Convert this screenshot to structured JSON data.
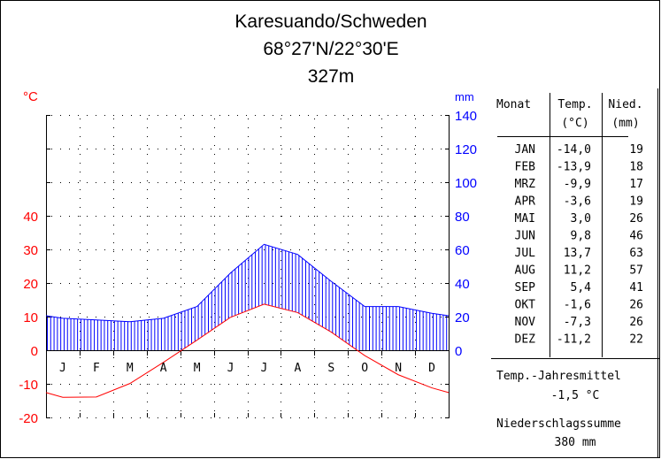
{
  "title": {
    "station": "Karesuando/Schweden",
    "coords": "68°27'N/22°30'E",
    "elevation": "327m"
  },
  "colors": {
    "temp": "#ff0000",
    "precip": "#0000ff",
    "axis": "#000000"
  },
  "chart_data": {
    "type": "line",
    "title": "Karesuando/Schweden",
    "categories": [
      "J",
      "F",
      "M",
      "A",
      "M",
      "J",
      "J",
      "A",
      "S",
      "O",
      "N",
      "D"
    ],
    "temp_axis": {
      "label": "°C",
      "ticks": [
        "-20",
        "-10",
        "0",
        "10",
        "20",
        "30",
        "40"
      ],
      "range": [
        -20,
        70
      ]
    },
    "precip_axis": {
      "label": "mm",
      "ticks": [
        "0",
        "20",
        "40",
        "60",
        "80",
        "100",
        "120",
        "140"
      ],
      "range": [
        -40,
        140
      ]
    },
    "grid": true,
    "series": [
      {
        "name": "Temp. (°C)",
        "values": [
          -14.0,
          -13.9,
          -9.9,
          -3.6,
          3.0,
          9.8,
          13.7,
          11.2,
          5.4,
          -1.6,
          -7.3,
          -11.2
        ]
      },
      {
        "name": "Nied. (mm)",
        "values": [
          19,
          18,
          17,
          19,
          26,
          46,
          63,
          57,
          41,
          26,
          26,
          22
        ]
      }
    ]
  },
  "table": {
    "headers": {
      "month": "Monat",
      "temp1": "Temp.",
      "temp2": "(°C)",
      "precip1": "Nied.",
      "precip2": "(mm)"
    },
    "rows": [
      {
        "m": "JAN",
        "t": "-14,0",
        "p": "19"
      },
      {
        "m": "FEB",
        "t": "-13,9",
        "p": "18"
      },
      {
        "m": "MRZ",
        "t": "-9,9",
        "p": "17"
      },
      {
        "m": "APR",
        "t": "-3,6",
        "p": "19"
      },
      {
        "m": "MAI",
        "t": "3,0",
        "p": "26"
      },
      {
        "m": "JUN",
        "t": "9,8",
        "p": "46"
      },
      {
        "m": "JUL",
        "t": "13,7",
        "p": "63"
      },
      {
        "m": "AUG",
        "t": "11,2",
        "p": "57"
      },
      {
        "m": "SEP",
        "t": "5,4",
        "p": "41"
      },
      {
        "m": "OKT",
        "t": "-1,6",
        "p": "26"
      },
      {
        "m": "NOV",
        "t": "-7,3",
        "p": "26"
      },
      {
        "m": "DEZ",
        "t": "-11,2",
        "p": "22"
      }
    ],
    "annual_mean_label": "Temp.-Jahresmittel",
    "annual_mean_value": "-1,5 °C",
    "precip_sum_label": "Niederschlagssumme",
    "precip_sum_value": "380 mm"
  }
}
